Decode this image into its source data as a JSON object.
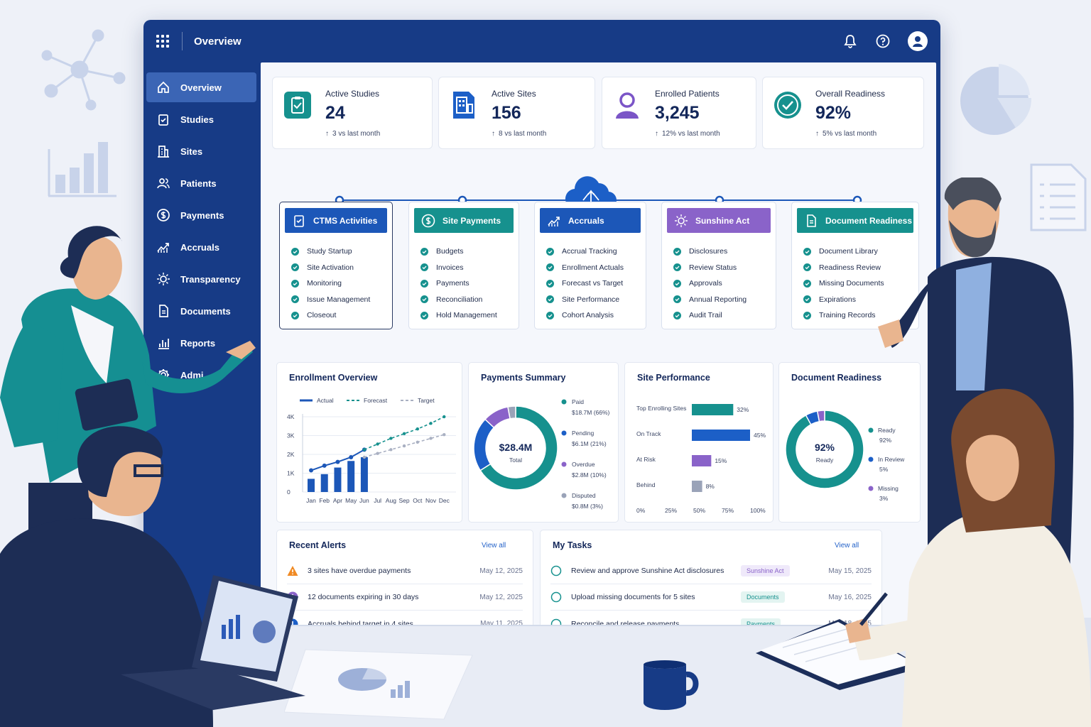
{
  "header": {
    "title": "Overview"
  },
  "sidebar": {
    "items": [
      {
        "label": "Overview",
        "icon": "home-icon",
        "active": true
      },
      {
        "label": "Studies",
        "icon": "clipboard-icon"
      },
      {
        "label": "Sites",
        "icon": "building-icon"
      },
      {
        "label": "Patients",
        "icon": "users-icon"
      },
      {
        "label": "Payments",
        "icon": "dollar-icon"
      },
      {
        "label": "Accruals",
        "icon": "trend-icon"
      },
      {
        "label": "Transparency",
        "icon": "sun-icon"
      },
      {
        "label": "Documents",
        "icon": "document-icon"
      },
      {
        "label": "Reports",
        "icon": "bar-chart-icon"
      },
      {
        "label": "Admi",
        "icon": "gear-icon"
      }
    ]
  },
  "kpis": [
    {
      "label": "Active Studies",
      "value": "24",
      "delta": "3 vs last month",
      "icon": "clipboard-check-icon",
      "color": "#16918e"
    },
    {
      "label": "Active Sites",
      "value": "156",
      "delta": "8 vs last month",
      "icon": "building-icon",
      "color": "#1c5fc7"
    },
    {
      "label": "Enrolled Patients",
      "value": "3,245",
      "delta": "12% vs last month",
      "icon": "user-icon",
      "color": "#7b55c7"
    },
    {
      "label": "Overall Readiness",
      "value": "92%",
      "delta": "5% vs last month",
      "icon": "check-circle-icon",
      "color": "#16918e"
    }
  ],
  "modules": [
    {
      "title": "CTMS Activities",
      "color": "#1c57b8",
      "items": [
        "Study Startup",
        "Site Activation",
        "Monitoring",
        "Issue Management",
        "Closeout"
      ]
    },
    {
      "title": "Site Payments",
      "color": "#16918e",
      "items": [
        "Budgets",
        "Invoices",
        "Payments",
        "Reconciliation",
        "Hold Management"
      ]
    },
    {
      "title": "Accruals",
      "color": "#1c57b8",
      "items": [
        "Accrual Tracking",
        "Enrollment Actuals",
        "Forecast vs Target",
        "Site Performance",
        "Cohort Analysis"
      ]
    },
    {
      "title": "Sunshine Act",
      "color": "#8a63c9",
      "items": [
        "Disclosures",
        "Review Status",
        "Approvals",
        "Annual Reporting",
        "Audit Trail"
      ]
    },
    {
      "title": "Document Readiness",
      "color": "#16918e",
      "items": [
        "Document Library",
        "Readiness Review",
        "Missing Documents",
        "Expirations",
        "Training Records"
      ]
    }
  ],
  "panels": {
    "enrollment": {
      "title": "Enrollment Overview"
    },
    "payments": {
      "title": "Payments Summary"
    },
    "site_performance": {
      "title": "Site Performance"
    },
    "document_readiness": {
      "title": "Document Readiness"
    }
  },
  "chart_data": [
    {
      "type": "bar",
      "title": "Enrollment Overview",
      "categories": [
        "Jan",
        "Feb",
        "Apr",
        "May",
        "Jun",
        "Jul",
        "Aug",
        "Sep",
        "Oct",
        "Nov",
        "Dec"
      ],
      "yticks": [
        "4K",
        "3K",
        "2K",
        "1K",
        "0"
      ],
      "ylim": [
        0,
        4000
      ],
      "series": [
        {
          "name": "Actual",
          "kind": "bar+line",
          "color": "#1c57b8",
          "values": [
            700,
            950,
            1300,
            1650,
            1850,
            null,
            null,
            null,
            null,
            null,
            null
          ],
          "line": [
            1150,
            1400,
            1600,
            1850,
            2250,
            null,
            null,
            null,
            null,
            null,
            null
          ]
        },
        {
          "name": "Forecast",
          "kind": "dashed-line",
          "color": "#16918e",
          "values": [
            null,
            null,
            null,
            null,
            2250,
            2550,
            2850,
            3100,
            3350,
            3650,
            4000
          ]
        },
        {
          "name": "Target",
          "kind": "dashed-line",
          "color": "#a9b0c2",
          "values": [
            null,
            null,
            null,
            null,
            null,
            2050,
            2250,
            2450,
            2650,
            2850,
            3050
          ]
        }
      ]
    },
    {
      "type": "pie",
      "title": "Payments Summary",
      "center_value": "$28.4M",
      "center_label": "Total",
      "slices": [
        {
          "name": "Paid",
          "value": 66,
          "amount": "$18.7M (66%)",
          "color": "#16918e"
        },
        {
          "name": "Pending",
          "value": 21,
          "amount": "$6.1M (21%)",
          "color": "#1c5fc7"
        },
        {
          "name": "Overdue",
          "value": 10,
          "amount": "$2.8M (10%)",
          "color": "#8a63c9"
        },
        {
          "name": "Disputed",
          "value": 3,
          "amount": "$0.8M (3%)",
          "color": "#9aa3b8"
        }
      ]
    },
    {
      "type": "bar",
      "title": "Site Performance",
      "orientation": "horizontal",
      "categories": [
        "Top Enrolling Sites",
        "On Track",
        "At Risk",
        "Behind"
      ],
      "values": [
        32,
        45,
        15,
        8
      ],
      "labels": [
        "32%",
        "45%",
        "15%",
        "8%"
      ],
      "colors": [
        "#16918e",
        "#1c5fc7",
        "#8a63c9",
        "#9aa3b8"
      ],
      "xticks": [
        "0%",
        "25%",
        "50%",
        "75%",
        "100%"
      ],
      "xlim": [
        0,
        100
      ]
    },
    {
      "type": "pie",
      "title": "Document Readiness",
      "center_value": "92%",
      "center_label": "Ready",
      "slices": [
        {
          "name": "Ready",
          "value": 92,
          "label": "92%",
          "color": "#16918e"
        },
        {
          "name": "In Review",
          "value": 5,
          "label": "5%",
          "color": "#1c5fc7"
        },
        {
          "name": "Missing",
          "value": 3,
          "label": "3%",
          "color": "#8a63c9"
        }
      ]
    }
  ],
  "alerts": {
    "title": "Recent Alerts",
    "view_all": "View all",
    "items": [
      {
        "text": "3 sites have overdue payments",
        "date": "May 12, 2025",
        "icon": "warning-icon",
        "color": "#f08a24"
      },
      {
        "text": "12 documents expiring in 30 days",
        "date": "May 12, 2025",
        "icon": "info-icon",
        "color": "#8a63c9"
      },
      {
        "text": "Accruals behind target in 4 sites",
        "date": "May 11, 2025",
        "icon": "alert-icon",
        "color": "#1c5fc7"
      }
    ]
  },
  "tasks": {
    "title": "My Tasks",
    "view_all": "View all",
    "items": [
      {
        "text": "Review and approve Sunshine Act disclosures",
        "tag": "Sunshine Act",
        "tag_color": "#8a63c9",
        "date": "May 15, 2025"
      },
      {
        "text": "Upload missing documents for 5 sites",
        "tag": "Documents",
        "tag_color": "#16918e",
        "date": "May 16, 2025"
      },
      {
        "text": "Reconcile and release payments",
        "tag": "Payments",
        "tag_color": "#16918e",
        "date": "May 18, 2025"
      }
    ]
  }
}
